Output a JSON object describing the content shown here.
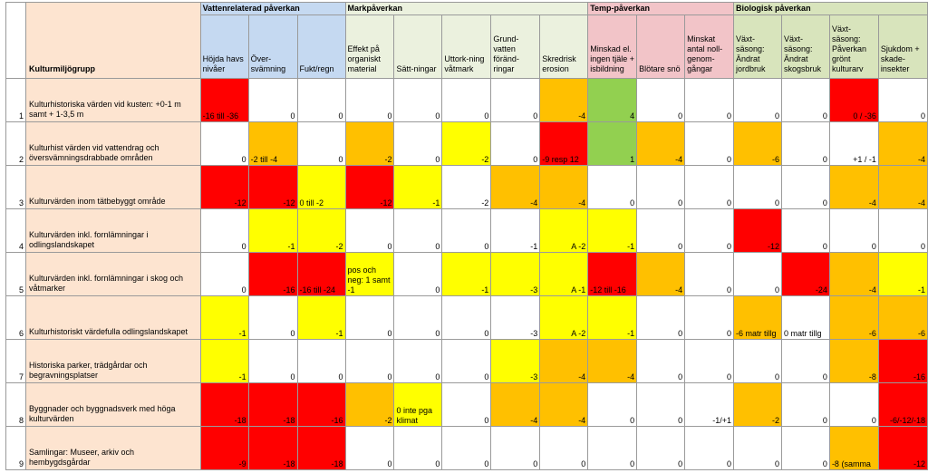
{
  "header": {
    "row_label": "Kulturmiljögrupp",
    "groups": [
      {
        "label": "Vattenrelaterad påverkan",
        "color": "#c5d9f1",
        "span": 3
      },
      {
        "label": "Markpåverkan",
        "color": "#ebf1de",
        "span": 5
      },
      {
        "label": "Temp-påverkan",
        "color": "#f2c4c8",
        "span": 3
      },
      {
        "label": "Biologisk påverkan",
        "color": "#d8e4bc",
        "span": 4
      }
    ],
    "columns": [
      "Höjda havs nivåer",
      "Över-svämning",
      "Fukt/regn",
      "Effekt på organiskt material",
      "Sätt-ningar",
      "Uttork-ning våtmark",
      "Grund-vatten föränd-ringar",
      "Skredrisk erosion",
      "Minskad el. ingen tjäle + isbildning",
      "Blötare snö",
      "Minskat antal noll-genom-gångar",
      "Växt-säsong: Ändrat jordbruk",
      "Växt-säsong: Ändrat skogsbruk",
      "Växt-säsong: Påverkan grönt kulturarv",
      "Sjukdom + skade-insekter"
    ]
  },
  "colors": {
    "red": "#ff0000",
    "orange": "#ffc000",
    "yellow": "#ffff00",
    "green": "#92d050",
    "white": "#ffffff",
    "label_bg": "#fde4d0"
  },
  "rows": [
    {
      "index": "1",
      "label": "Kulturhistoriska värden vid kusten: +0-1 m samt + 1-3,5 m",
      "cells": [
        [
          "-16 till -36",
          "red"
        ],
        [
          "0",
          "white"
        ],
        [
          "0",
          "white"
        ],
        [
          "0",
          "white"
        ],
        [
          "0",
          "white"
        ],
        [
          "0",
          "white"
        ],
        [
          "0",
          "white"
        ],
        [
          "-4",
          "orange"
        ],
        [
          "4",
          "green"
        ],
        [
          "0",
          "white"
        ],
        [
          "0",
          "white"
        ],
        [
          "0",
          "white"
        ],
        [
          "0",
          "white"
        ],
        [
          "0 / -36",
          "red"
        ],
        [
          "0",
          "white"
        ]
      ]
    },
    {
      "index": "2",
      "label": "Kulturhist värden vid vattendrag och översvämningsdrabbade områden",
      "cells": [
        [
          "0",
          "white"
        ],
        [
          "-2 till -4",
          "orange"
        ],
        [
          "0",
          "white"
        ],
        [
          "-2",
          "orange"
        ],
        [
          "0",
          "white"
        ],
        [
          "-2",
          "yellow"
        ],
        [
          "0",
          "white"
        ],
        [
          "-9 resp 12",
          "red"
        ],
        [
          "1",
          "green"
        ],
        [
          "-4",
          "orange"
        ],
        [
          "0",
          "white"
        ],
        [
          "-6",
          "orange"
        ],
        [
          "0",
          "white"
        ],
        [
          "+1 / -1",
          "white"
        ],
        [
          "-4",
          "orange"
        ]
      ]
    },
    {
      "index": "3",
      "label": "Kulturvärden inom tätbebyggt område",
      "cells": [
        [
          "-12",
          "red"
        ],
        [
          "-12",
          "red"
        ],
        [
          "0 till -2",
          "yellow"
        ],
        [
          "-12",
          "red"
        ],
        [
          "-1",
          "yellow"
        ],
        [
          "-2",
          "white"
        ],
        [
          "-4",
          "orange"
        ],
        [
          "-4",
          "orange"
        ],
        [
          "0",
          "white"
        ],
        [
          "0",
          "white"
        ],
        [
          "0",
          "white"
        ],
        [
          "0",
          "white"
        ],
        [
          "0",
          "white"
        ],
        [
          "-4",
          "orange"
        ],
        [
          "-4",
          "orange"
        ]
      ]
    },
    {
      "index": "4",
      "label": "Kulturvärden inkl. fornlämningar i odlingslandskapet",
      "cells": [
        [
          "0",
          "white"
        ],
        [
          "-1",
          "yellow"
        ],
        [
          "-2",
          "yellow"
        ],
        [
          "0",
          "white"
        ],
        [
          "0",
          "white"
        ],
        [
          "0",
          "white"
        ],
        [
          "-1",
          "white"
        ],
        [
          "A -2",
          "yellow"
        ],
        [
          "-1",
          "yellow"
        ],
        [
          "0",
          "white"
        ],
        [
          "0",
          "white"
        ],
        [
          "-12",
          "red"
        ],
        [
          "0",
          "white"
        ],
        [
          "0",
          "white"
        ],
        [
          "0",
          "white"
        ]
      ]
    },
    {
      "index": "5",
      "label": "Kulturvärden inkl. fornlämningar i skog och våtmarker",
      "cells": [
        [
          "0",
          "white"
        ],
        [
          "-16",
          "red"
        ],
        [
          "-16 till -24",
          "red"
        ],
        [
          "pos och neg: 1 samt -1",
          "yellow"
        ],
        [
          "0",
          "white"
        ],
        [
          "-1",
          "yellow"
        ],
        [
          "-3",
          "yellow"
        ],
        [
          "A -1",
          "yellow"
        ],
        [
          "-12 till -16",
          "red"
        ],
        [
          "-4",
          "orange"
        ],
        [
          "0",
          "white"
        ],
        [
          "0",
          "white"
        ],
        [
          "-24",
          "red"
        ],
        [
          "-4",
          "orange"
        ],
        [
          "-1",
          "yellow"
        ]
      ]
    },
    {
      "index": "6",
      "label": "Kulturhistoriskt värdefulla odlingslandskapet",
      "cells": [
        [
          "-1",
          "yellow"
        ],
        [
          "0",
          "white"
        ],
        [
          "-1",
          "yellow"
        ],
        [
          "0",
          "white"
        ],
        [
          "0",
          "white"
        ],
        [
          "0",
          "white"
        ],
        [
          "-3",
          "white"
        ],
        [
          "A -2",
          "yellow"
        ],
        [
          "-1",
          "yellow"
        ],
        [
          "0",
          "white"
        ],
        [
          "0",
          "white"
        ],
        [
          "-6 matr tillg",
          "orange"
        ],
        [
          "0 matr tillg",
          "white"
        ],
        [
          "-6",
          "orange"
        ],
        [
          "-6",
          "orange"
        ]
      ]
    },
    {
      "index": "7",
      "label": "Historiska parker, trädgårdar och begravningsplatser",
      "cells": [
        [
          "-1",
          "yellow"
        ],
        [
          "0",
          "white"
        ],
        [
          "0",
          "white"
        ],
        [
          "0",
          "white"
        ],
        [
          "0",
          "white"
        ],
        [
          "0",
          "white"
        ],
        [
          "-3",
          "yellow"
        ],
        [
          "-4",
          "orange"
        ],
        [
          "-4",
          "orange"
        ],
        [
          "0",
          "white"
        ],
        [
          "0",
          "white"
        ],
        [
          "0",
          "white"
        ],
        [
          "0",
          "white"
        ],
        [
          "-8",
          "orange"
        ],
        [
          "-16",
          "red"
        ]
      ]
    },
    {
      "index": "8",
      "label": "Byggnader och byggnadsverk med höga kulturvärden",
      "cells": [
        [
          "-18",
          "red"
        ],
        [
          "-18",
          "red"
        ],
        [
          "-16",
          "red"
        ],
        [
          "-2",
          "orange"
        ],
        [
          "0 inte pga klimat",
          "yellow"
        ],
        [
          "0",
          "white"
        ],
        [
          "-4",
          "orange"
        ],
        [
          "-4",
          "orange"
        ],
        [
          "0",
          "white"
        ],
        [
          "0",
          "white"
        ],
        [
          "-1/+1",
          "white"
        ],
        [
          "-2",
          "orange"
        ],
        [
          "0",
          "white"
        ],
        [
          "0",
          "white"
        ],
        [
          "-6/-12/-18",
          "red"
        ]
      ]
    },
    {
      "index": "9",
      "label": "Samlingar: Museer, arkiv och hembygdsgårdar",
      "cells": [
        [
          "-9",
          "red"
        ],
        [
          "-18",
          "red"
        ],
        [
          "-18",
          "red"
        ],
        [
          "0",
          "white"
        ],
        [
          "0",
          "white"
        ],
        [
          "0",
          "white"
        ],
        [
          "0",
          "white"
        ],
        [
          "0",
          "white"
        ],
        [
          "0",
          "white"
        ],
        [
          "0",
          "white"
        ],
        [
          "0",
          "white"
        ],
        [
          "0",
          "white"
        ],
        [
          "0",
          "white"
        ],
        [
          "-8 (samma",
          "orange"
        ],
        [
          "-12",
          "red"
        ]
      ]
    }
  ]
}
